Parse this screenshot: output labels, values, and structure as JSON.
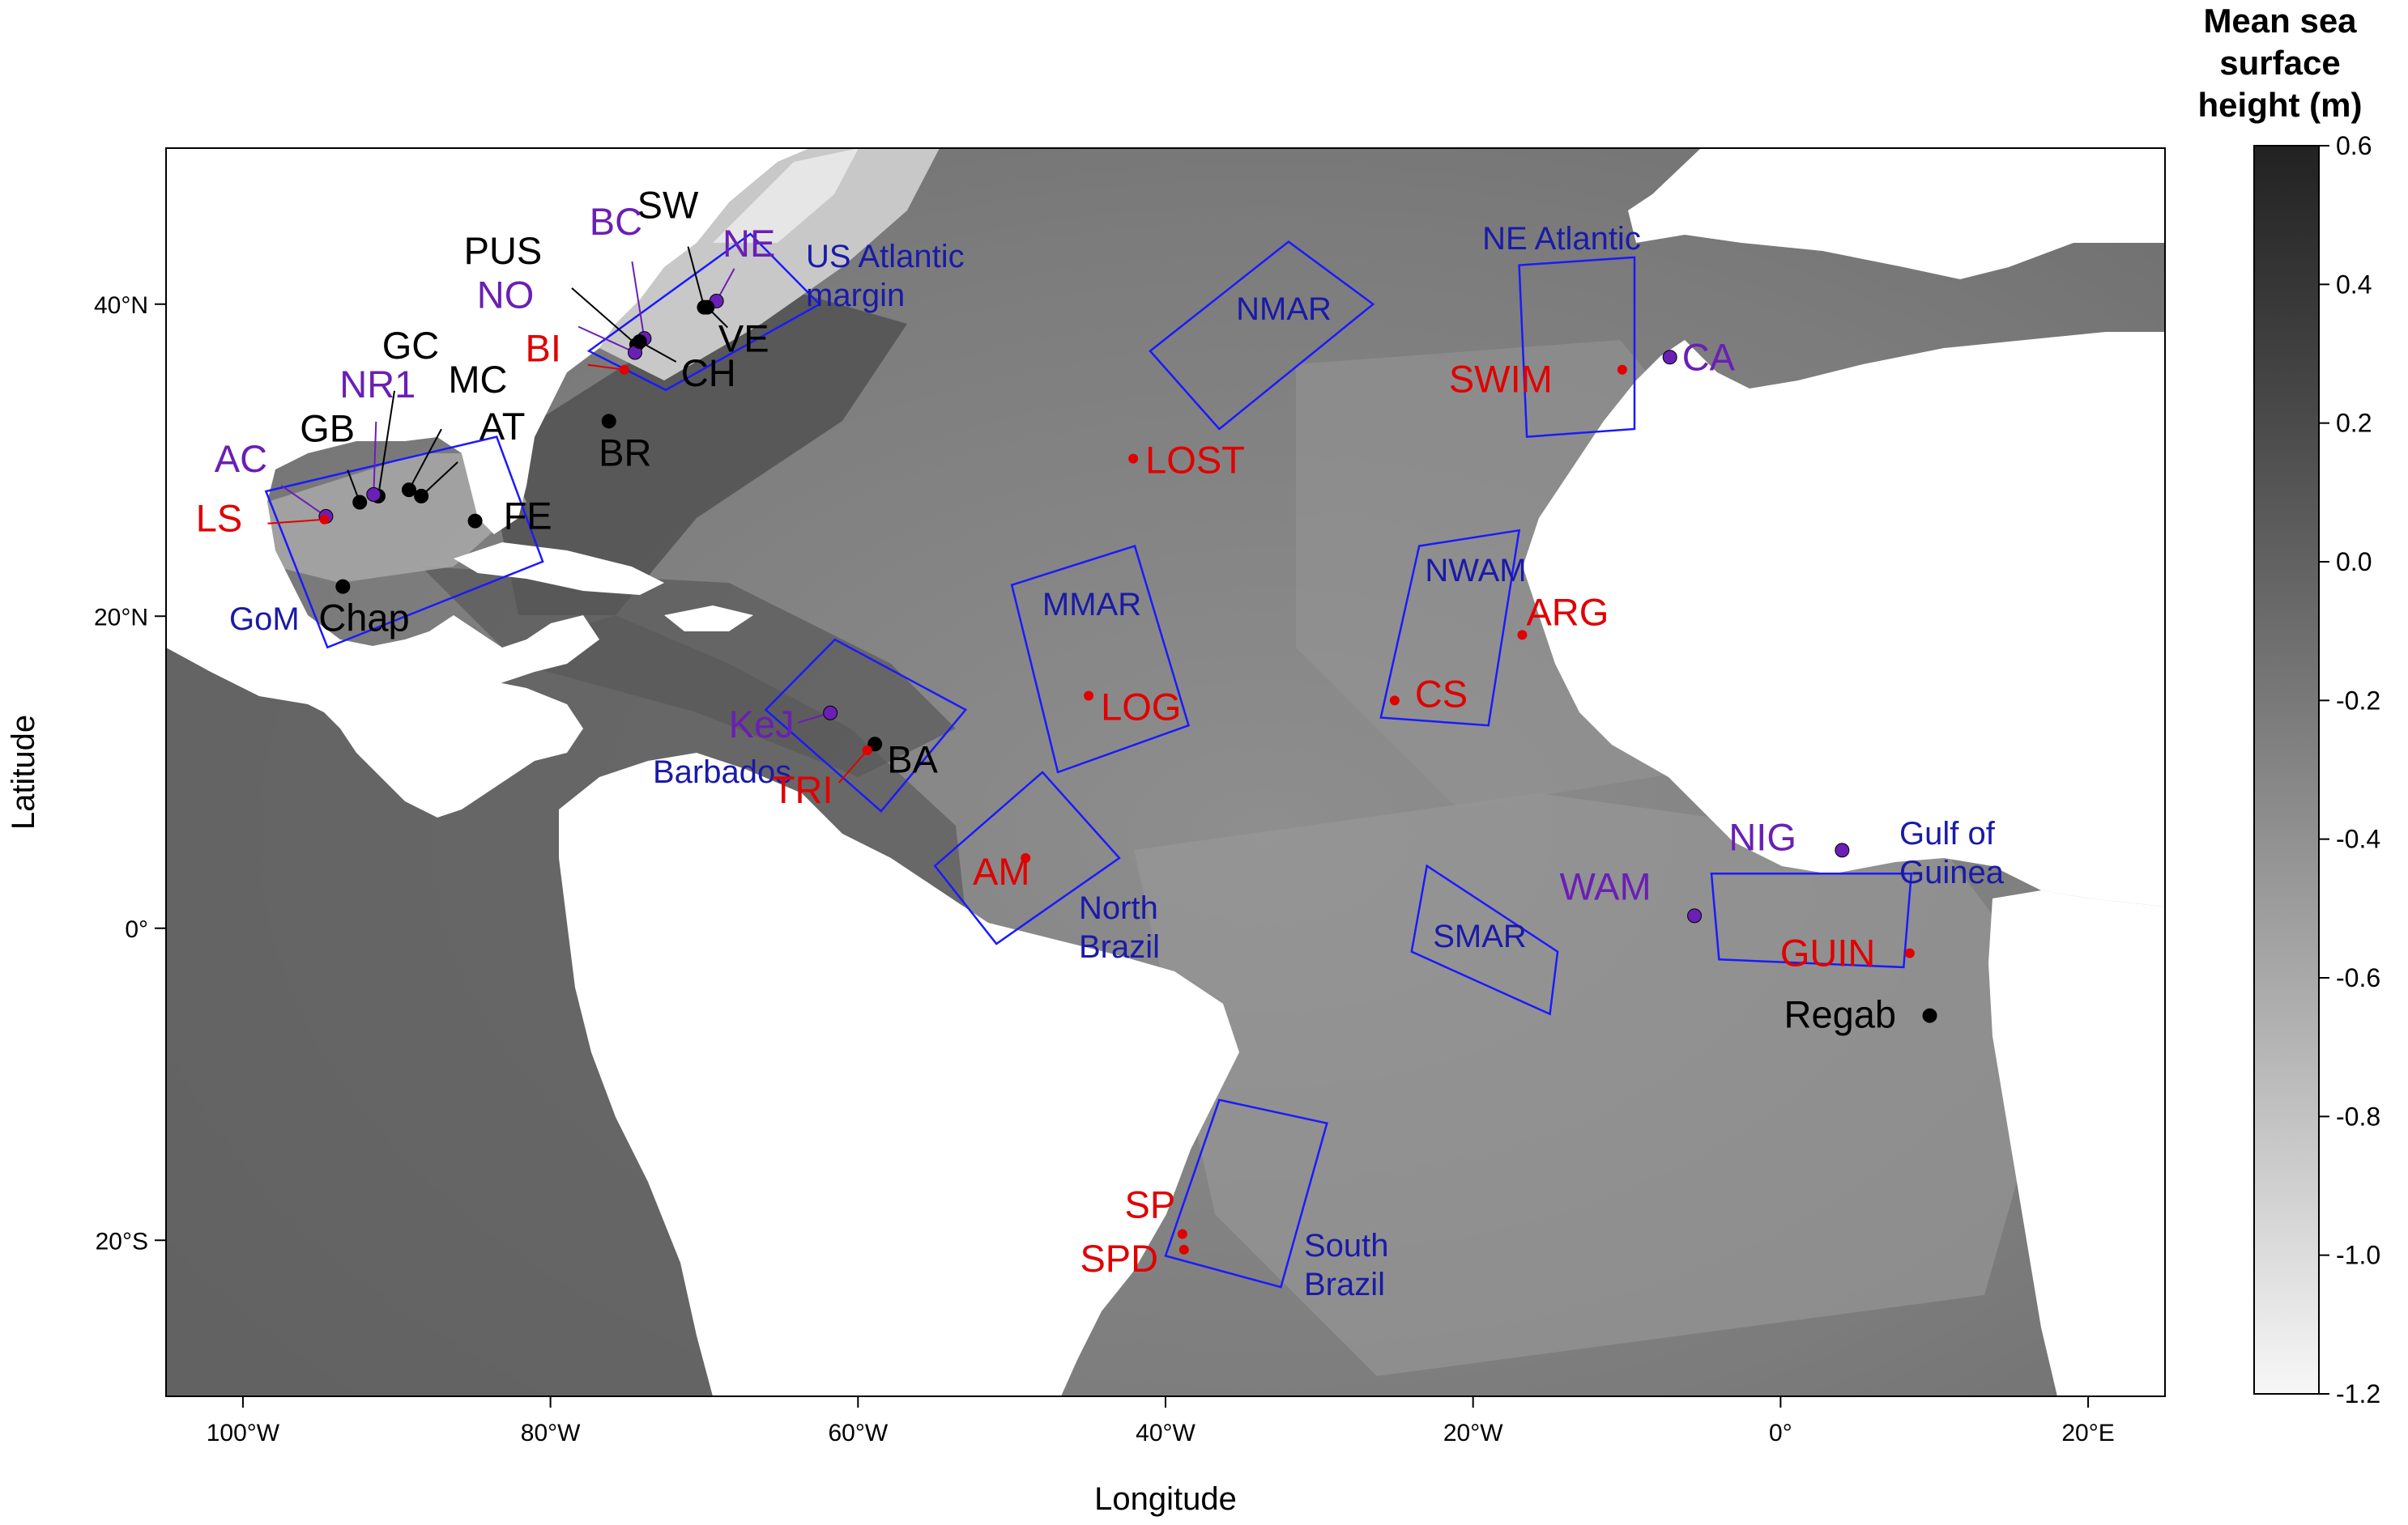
{
  "axes": {
    "xlabel": "Longitude",
    "ylabel": "Latitude",
    "lon_range": [
      -105,
      25
    ],
    "lat_range": [
      -30,
      50
    ],
    "x_ticks": [
      {
        "value": -100,
        "label": "100°W"
      },
      {
        "value": -80,
        "label": "80°W"
      },
      {
        "value": -60,
        "label": "60°W"
      },
      {
        "value": -40,
        "label": "40°W"
      },
      {
        "value": -20,
        "label": "20°W"
      },
      {
        "value": 0,
        "label": "0°"
      },
      {
        "value": 20,
        "label": "20°E"
      }
    ],
    "y_ticks": [
      {
        "value": 40,
        "label": "40°N"
      },
      {
        "value": 20,
        "label": "20°N"
      },
      {
        "value": 0,
        "label": "0°"
      },
      {
        "value": -20,
        "label": "20°S"
      }
    ]
  },
  "colorbar": {
    "title_lines": [
      "Mean sea",
      "surface",
      "height (m)"
    ],
    "range": [
      -1.2,
      0.6
    ],
    "ticks": [
      "0.6",
      "0.4",
      "0.2",
      "0.0",
      "-0.2",
      "-0.4",
      "-0.6",
      "-0.8",
      "-1.0",
      "-1.2"
    ],
    "high_color": "#222222",
    "low_color": "#f7f7f7"
  },
  "colors": {
    "region_box": "#1a1aff",
    "region_text": "#1a1aa8",
    "black_site": "#000000",
    "purple_site": "#6a1fb5",
    "red_site": "#e00000",
    "land": "#ffffff"
  },
  "regions": [
    {
      "id": "gom",
      "name": "GoM",
      "corners": [
        [
          -98.5,
          28
        ],
        [
          -83.5,
          31.5
        ],
        [
          -80.5,
          23.5
        ],
        [
          -94.5,
          18
        ]
      ]
    },
    {
      "id": "usam",
      "name": "US Atlantic margin",
      "name_lines": [
        "US Atlantic",
        "margin"
      ],
      "corners": [
        [
          -77.5,
          37
        ],
        [
          -67,
          44.5
        ],
        [
          -62.5,
          40
        ],
        [
          -72.5,
          34.5
        ]
      ]
    },
    {
      "id": "nmar",
      "name": "NMAR",
      "corners": [
        [
          -41,
          37
        ],
        [
          -32,
          44
        ],
        [
          -26.5,
          40
        ],
        [
          -36.5,
          32
        ]
      ]
    },
    {
      "id": "neatl",
      "name": "NE Atlantic",
      "corners": [
        [
          -17,
          42.5
        ],
        [
          -9.5,
          43
        ],
        [
          -9.5,
          32
        ],
        [
          -16.5,
          31.5
        ]
      ]
    },
    {
      "id": "mmar",
      "name": "MMAR",
      "corners": [
        [
          -50,
          22
        ],
        [
          -42,
          24.5
        ],
        [
          -38.5,
          13
        ],
        [
          -47,
          10
        ]
      ]
    },
    {
      "id": "nwam",
      "name": "NWAM",
      "corners": [
        [
          -23.5,
          24.5
        ],
        [
          -17,
          25.5
        ],
        [
          -19,
          13
        ],
        [
          -26,
          13.5
        ]
      ]
    },
    {
      "id": "barb",
      "name": "Barbados",
      "corners": [
        [
          -66,
          14
        ],
        [
          -61.5,
          18.5
        ],
        [
          -53,
          14
        ],
        [
          -58.5,
          7.5
        ]
      ]
    },
    {
      "id": "nbr",
      "name": "North Brazil",
      "name_lines": [
        "North",
        "Brazil"
      ],
      "corners": [
        [
          -55,
          4
        ],
        [
          -48,
          10
        ],
        [
          -43,
          4.5
        ],
        [
          -51,
          -1
        ]
      ]
    },
    {
      "id": "smar",
      "name": "SMAR",
      "corners": [
        [
          -23,
          4
        ],
        [
          -14.5,
          -1.5
        ],
        [
          -15,
          -5.5
        ],
        [
          -24,
          -1.5
        ]
      ]
    },
    {
      "id": "gog",
      "name": "Gulf of Guinea",
      "name_lines": [
        "Gulf of",
        "Guinea"
      ],
      "corners": [
        [
          -4.5,
          3.5
        ],
        [
          8.5,
          3.5
        ],
        [
          8,
          -2.5
        ],
        [
          -4,
          -2
        ]
      ]
    },
    {
      "id": "sbr",
      "name": "South Brazil",
      "name_lines": [
        "South",
        "Brazil"
      ],
      "corners": [
        [
          -36.5,
          -11
        ],
        [
          -29.5,
          -12.5
        ],
        [
          -32.5,
          -23
        ],
        [
          -40,
          -21
        ]
      ]
    }
  ],
  "sites": [
    {
      "label": "SW",
      "group": "black",
      "lon": -70,
      "lat": 39.8
    },
    {
      "label": "NE",
      "group": "purple",
      "lon": -69.2,
      "lat": 40.2
    },
    {
      "label": "VE",
      "group": "black",
      "lon": -69.8,
      "lat": 39.8
    },
    {
      "label": "PUS",
      "group": "black",
      "lon": -74.4,
      "lat": 37.4
    },
    {
      "label": "BC",
      "group": "purple",
      "lon": -73.9,
      "lat": 37.8
    },
    {
      "label": "NO",
      "group": "purple",
      "lon": -74.5,
      "lat": 36.9
    },
    {
      "label": "CH",
      "group": "black",
      "lon": -74.2,
      "lat": 37.6
    },
    {
      "label": "BI",
      "group": "red",
      "lon": -75.2,
      "lat": 35.8
    },
    {
      "label": "BR",
      "group": "black",
      "lon": -76.2,
      "lat": 32.5
    },
    {
      "label": "GC",
      "group": "black",
      "lon": -91.2,
      "lat": 27.7
    },
    {
      "label": "NR1",
      "group": "purple",
      "lon": -91.5,
      "lat": 27.8
    },
    {
      "label": "GB",
      "group": "black",
      "lon": -92.4,
      "lat": 27.3
    },
    {
      "label": "MC",
      "group": "black",
      "lon": -89.2,
      "lat": 28.1
    },
    {
      "label": "AT",
      "group": "black",
      "lon": -88.4,
      "lat": 27.7
    },
    {
      "label": "AC",
      "group": "purple",
      "lon": -94.6,
      "lat": 26.4
    },
    {
      "label": "LS",
      "group": "red",
      "lon": -94.7,
      "lat": 26.2
    },
    {
      "label": "FE",
      "group": "black",
      "lon": -84.9,
      "lat": 26.1
    },
    {
      "label": "Chap",
      "group": "black",
      "lon": -93.5,
      "lat": 21.9
    },
    {
      "label": "LOST",
      "group": "red",
      "lon": -42.1,
      "lat": 30.1
    },
    {
      "label": "SWIM",
      "group": "red",
      "lon": -10.3,
      "lat": 35.8
    },
    {
      "label": "CA",
      "group": "purple",
      "lon": -7.2,
      "lat": 36.6
    },
    {
      "label": "ARG",
      "group": "red",
      "lon": -16.8,
      "lat": 18.8
    },
    {
      "label": "CS",
      "group": "red",
      "lon": -25.1,
      "lat": 14.6
    },
    {
      "label": "LOG",
      "group": "red",
      "lon": -45,
      "lat": 14.9
    },
    {
      "label": "KeJ",
      "group": "purple",
      "lon": -61.8,
      "lat": 13.8
    },
    {
      "label": "BA",
      "group": "black",
      "lon": -58.9,
      "lat": 11.8
    },
    {
      "label": "TRI",
      "group": "red",
      "lon": -59.4,
      "lat": 11.4
    },
    {
      "label": "AM",
      "group": "red",
      "lon": -49.1,
      "lat": 4.5
    },
    {
      "label": "NIG",
      "group": "purple",
      "lon": 4,
      "lat": 5
    },
    {
      "label": "WAM",
      "group": "purple",
      "lon": -5.6,
      "lat": 0.8
    },
    {
      "label": "GUIN",
      "group": "red",
      "lon": 8.4,
      "lat": -1.6
    },
    {
      "label": "Regab",
      "group": "black",
      "lon": 9.7,
      "lat": -5.6
    },
    {
      "label": "SP",
      "group": "red",
      "lon": -38.9,
      "lat": -19.6
    },
    {
      "label": "SPD",
      "group": "red",
      "lon": -38.8,
      "lat": -20.6
    }
  ]
}
